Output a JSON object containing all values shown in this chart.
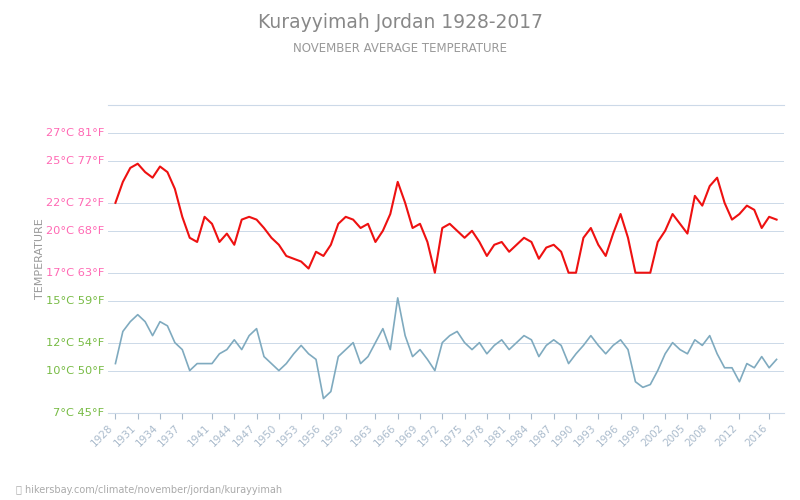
{
  "title": "Kurayyimah Jordan 1928-2017",
  "subtitle": "NOVEMBER AVERAGE TEMPERATURE",
  "ylabel": "TEMPERATURE",
  "footer": "hikersbay.com/climate/november/jordan/kurayyimah",
  "title_color": "#888888",
  "subtitle_color": "#999999",
  "ylabel_color": "#999999",
  "grid_color": "#ccd9e8",
  "day_color": "#ee1111",
  "night_color": "#7faabf",
  "bg_color": "#ffffff",
  "ylim_min": 7,
  "ylim_max": 29,
  "yticks_c": [
    7,
    10,
    12,
    15,
    17,
    20,
    22,
    25,
    27
  ],
  "yticks_f": [
    45,
    50,
    54,
    59,
    63,
    68,
    72,
    77,
    81
  ],
  "ytick_colors": [
    "#77bb44",
    "#77bb44",
    "#77bb44",
    "#77bb44",
    "#ff69b4",
    "#ff69b4",
    "#ff69b4",
    "#ff69b4",
    "#ff69b4"
  ],
  "years": [
    1928,
    1929,
    1930,
    1931,
    1932,
    1933,
    1934,
    1935,
    1936,
    1937,
    1938,
    1939,
    1940,
    1941,
    1942,
    1943,
    1944,
    1945,
    1946,
    1947,
    1948,
    1949,
    1950,
    1951,
    1952,
    1953,
    1954,
    1955,
    1956,
    1957,
    1958,
    1959,
    1960,
    1961,
    1962,
    1963,
    1964,
    1965,
    1966,
    1967,
    1968,
    1969,
    1970,
    1971,
    1972,
    1973,
    1974,
    1975,
    1976,
    1977,
    1978,
    1979,
    1980,
    1981,
    1982,
    1983,
    1984,
    1985,
    1986,
    1987,
    1988,
    1989,
    1990,
    1991,
    1992,
    1993,
    1994,
    1995,
    1996,
    1997,
    1998,
    1999,
    2000,
    2001,
    2002,
    2003,
    2004,
    2005,
    2006,
    2007,
    2008,
    2009,
    2010,
    2011,
    2012,
    2013,
    2014,
    2015,
    2016,
    2017
  ],
  "day_temps": [
    22.0,
    23.5,
    24.5,
    24.8,
    24.2,
    23.8,
    24.6,
    24.2,
    23.0,
    21.0,
    19.5,
    19.2,
    21.0,
    20.5,
    19.2,
    19.8,
    19.0,
    20.8,
    21.0,
    20.8,
    20.2,
    19.5,
    19.0,
    18.2,
    18.0,
    17.8,
    17.3,
    18.5,
    18.2,
    19.0,
    20.5,
    21.0,
    20.8,
    20.2,
    20.5,
    19.2,
    20.0,
    21.2,
    23.5,
    22.0,
    20.2,
    20.5,
    19.2,
    17.0,
    20.2,
    20.5,
    20.0,
    19.5,
    20.0,
    19.2,
    18.2,
    19.0,
    19.2,
    18.5,
    19.0,
    19.5,
    19.2,
    18.0,
    18.8,
    19.0,
    18.5,
    17.0,
    17.0,
    19.5,
    20.2,
    19.0,
    18.2,
    19.8,
    21.2,
    19.5,
    17.0,
    17.0,
    17.0,
    19.2,
    20.0,
    21.2,
    20.5,
    19.8,
    22.5,
    21.8,
    23.2,
    23.8,
    22.0,
    20.8,
    21.2,
    21.8,
    21.5,
    20.2,
    21.0,
    20.8
  ],
  "night_temps": [
    10.5,
    12.8,
    13.5,
    14.0,
    13.5,
    12.5,
    13.5,
    13.2,
    12.0,
    11.5,
    10.0,
    10.5,
    10.5,
    10.5,
    11.2,
    11.5,
    12.2,
    11.5,
    12.5,
    13.0,
    11.0,
    10.5,
    10.0,
    10.5,
    11.2,
    11.8,
    11.2,
    10.8,
    8.0,
    8.5,
    11.0,
    11.5,
    12.0,
    10.5,
    11.0,
    12.0,
    13.0,
    11.5,
    15.2,
    12.5,
    11.0,
    11.5,
    10.8,
    10.0,
    12.0,
    12.5,
    12.8,
    12.0,
    11.5,
    12.0,
    11.2,
    11.8,
    12.2,
    11.5,
    12.0,
    12.5,
    12.2,
    11.0,
    11.8,
    12.2,
    11.8,
    10.5,
    11.2,
    11.8,
    12.5,
    11.8,
    11.2,
    11.8,
    12.2,
    11.5,
    9.2,
    8.8,
    9.0,
    10.0,
    11.2,
    12.0,
    11.5,
    11.2,
    12.2,
    11.8,
    12.5,
    11.2,
    10.2,
    10.2,
    9.2,
    10.5,
    10.2,
    11.0,
    10.2,
    10.8
  ],
  "xtick_years": [
    1928,
    1931,
    1934,
    1937,
    1941,
    1944,
    1947,
    1950,
    1953,
    1956,
    1959,
    1963,
    1966,
    1969,
    1972,
    1975,
    1978,
    1981,
    1984,
    1987,
    1990,
    1993,
    1996,
    1999,
    2002,
    2005,
    2008,
    2012,
    2016
  ]
}
